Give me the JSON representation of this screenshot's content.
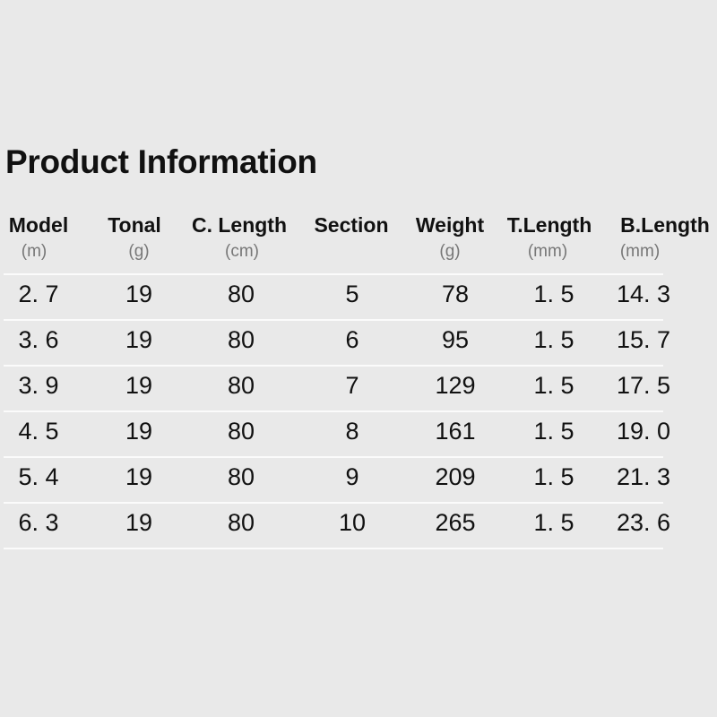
{
  "title": "Product Information",
  "columns": [
    {
      "label": "Model",
      "unit": "(m)"
    },
    {
      "label": "Tonal",
      "unit": "(g)"
    },
    {
      "label": "C. Length",
      "unit": "(cm)"
    },
    {
      "label": "Section",
      "unit": ""
    },
    {
      "label": "Weight",
      "unit": "(g)"
    },
    {
      "label": "T.Length",
      "unit": "(mm)"
    },
    {
      "label": "B.Length",
      "unit": "(mm)"
    }
  ],
  "rows": [
    [
      "2. 7",
      "19",
      "80",
      "5",
      "78",
      "1. 5",
      "14. 3"
    ],
    [
      "3. 6",
      "19",
      "80",
      "6",
      "95",
      "1. 5",
      "15. 7"
    ],
    [
      "3. 9",
      "19",
      "80",
      "7",
      "129",
      "1. 5",
      "17. 5"
    ],
    [
      "4. 5",
      "19",
      "80",
      "8",
      "161",
      "1. 5",
      "19. 0"
    ],
    [
      "5. 4",
      "19",
      "80",
      "9",
      "209",
      "1. 5",
      "21. 3"
    ],
    [
      "6. 3",
      "19",
      "80",
      "10",
      "265",
      "1. 5",
      "23. 6"
    ]
  ]
}
